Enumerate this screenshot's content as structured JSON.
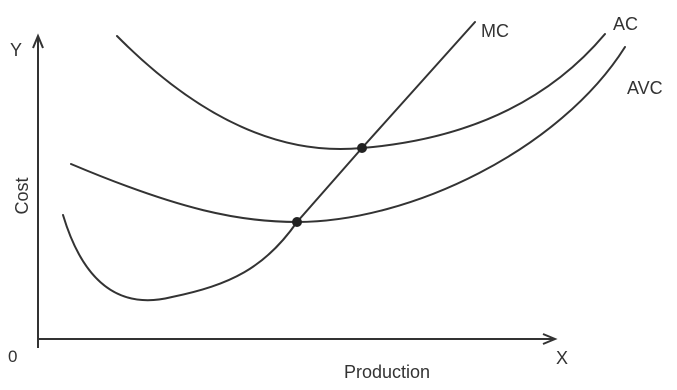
{
  "axes": {
    "y_letter": "Y",
    "x_letter": "X",
    "origin": "0",
    "y_label": "Cost",
    "x_label": "Production"
  },
  "curves": [
    {
      "label": "MC"
    },
    {
      "label": "AC"
    },
    {
      "label": "AVC"
    }
  ],
  "colors": {
    "ink": "#333333",
    "background": "#ffffff"
  }
}
